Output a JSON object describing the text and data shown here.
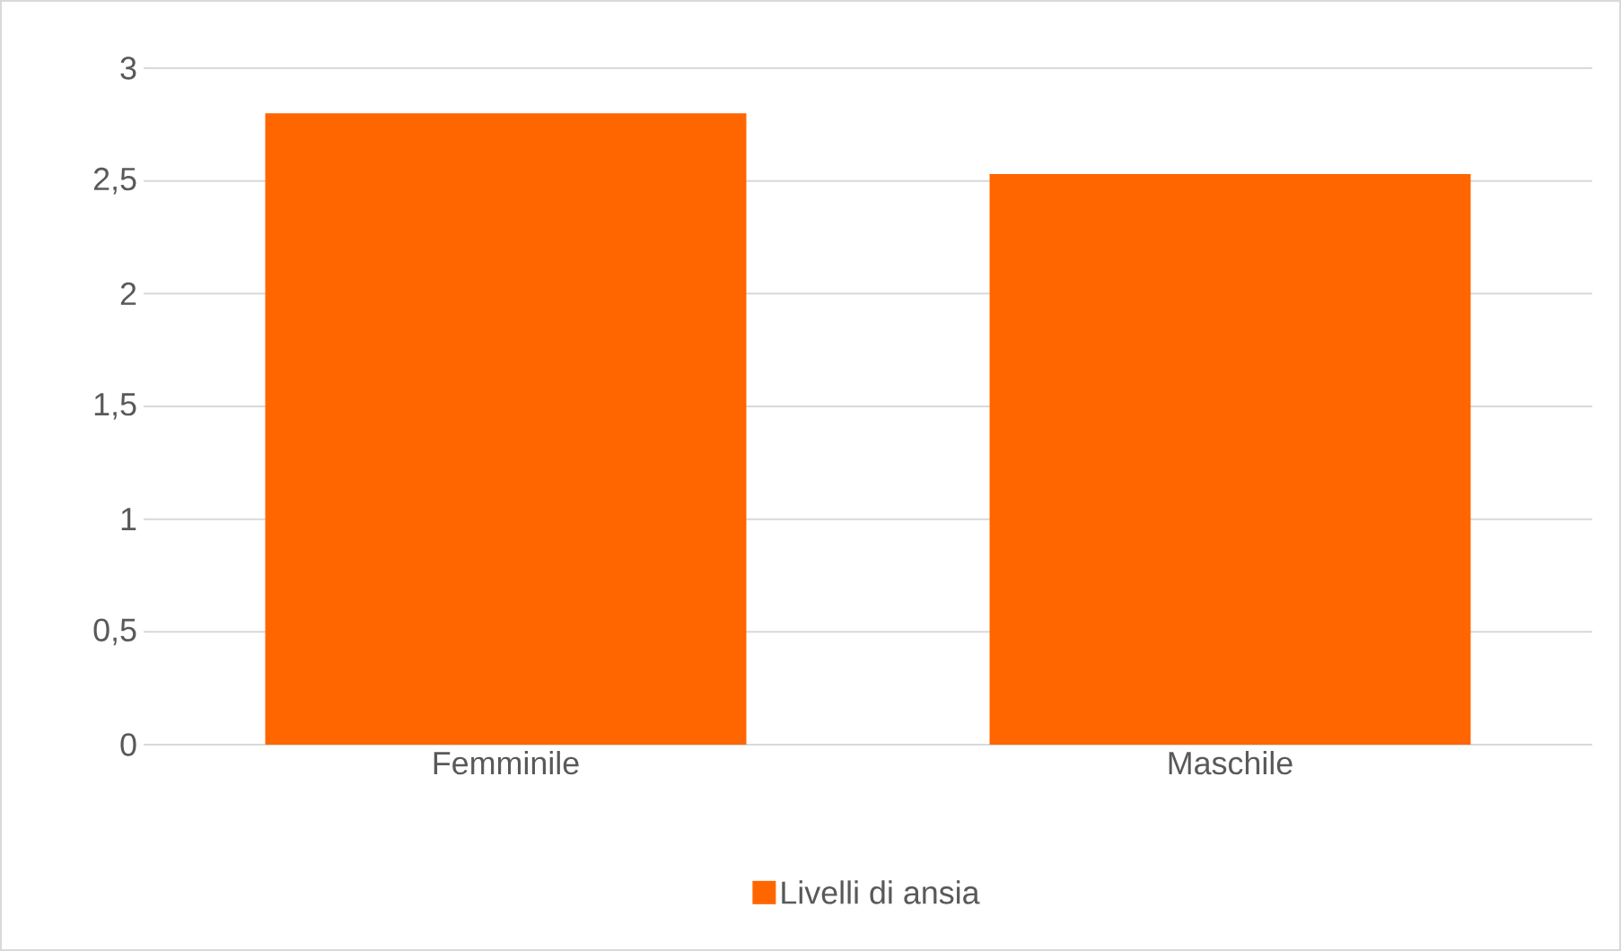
{
  "chart_data": {
    "type": "bar",
    "categories": [
      "Femminile",
      "Maschile"
    ],
    "series": [
      {
        "name": "Livelli di ansia",
        "color": "#ff6600",
        "values": [
          2.8,
          2.53
        ]
      }
    ],
    "ylim": [
      0,
      3
    ],
    "yticks": [
      0,
      {
        "value": 0.5,
        "label": "0,5"
      },
      1,
      {
        "value": 1.5,
        "label": "1,5"
      },
      2,
      {
        "value": 2.5,
        "label": "2,5"
      },
      3
    ],
    "grid": "y",
    "legend": "bottom"
  }
}
